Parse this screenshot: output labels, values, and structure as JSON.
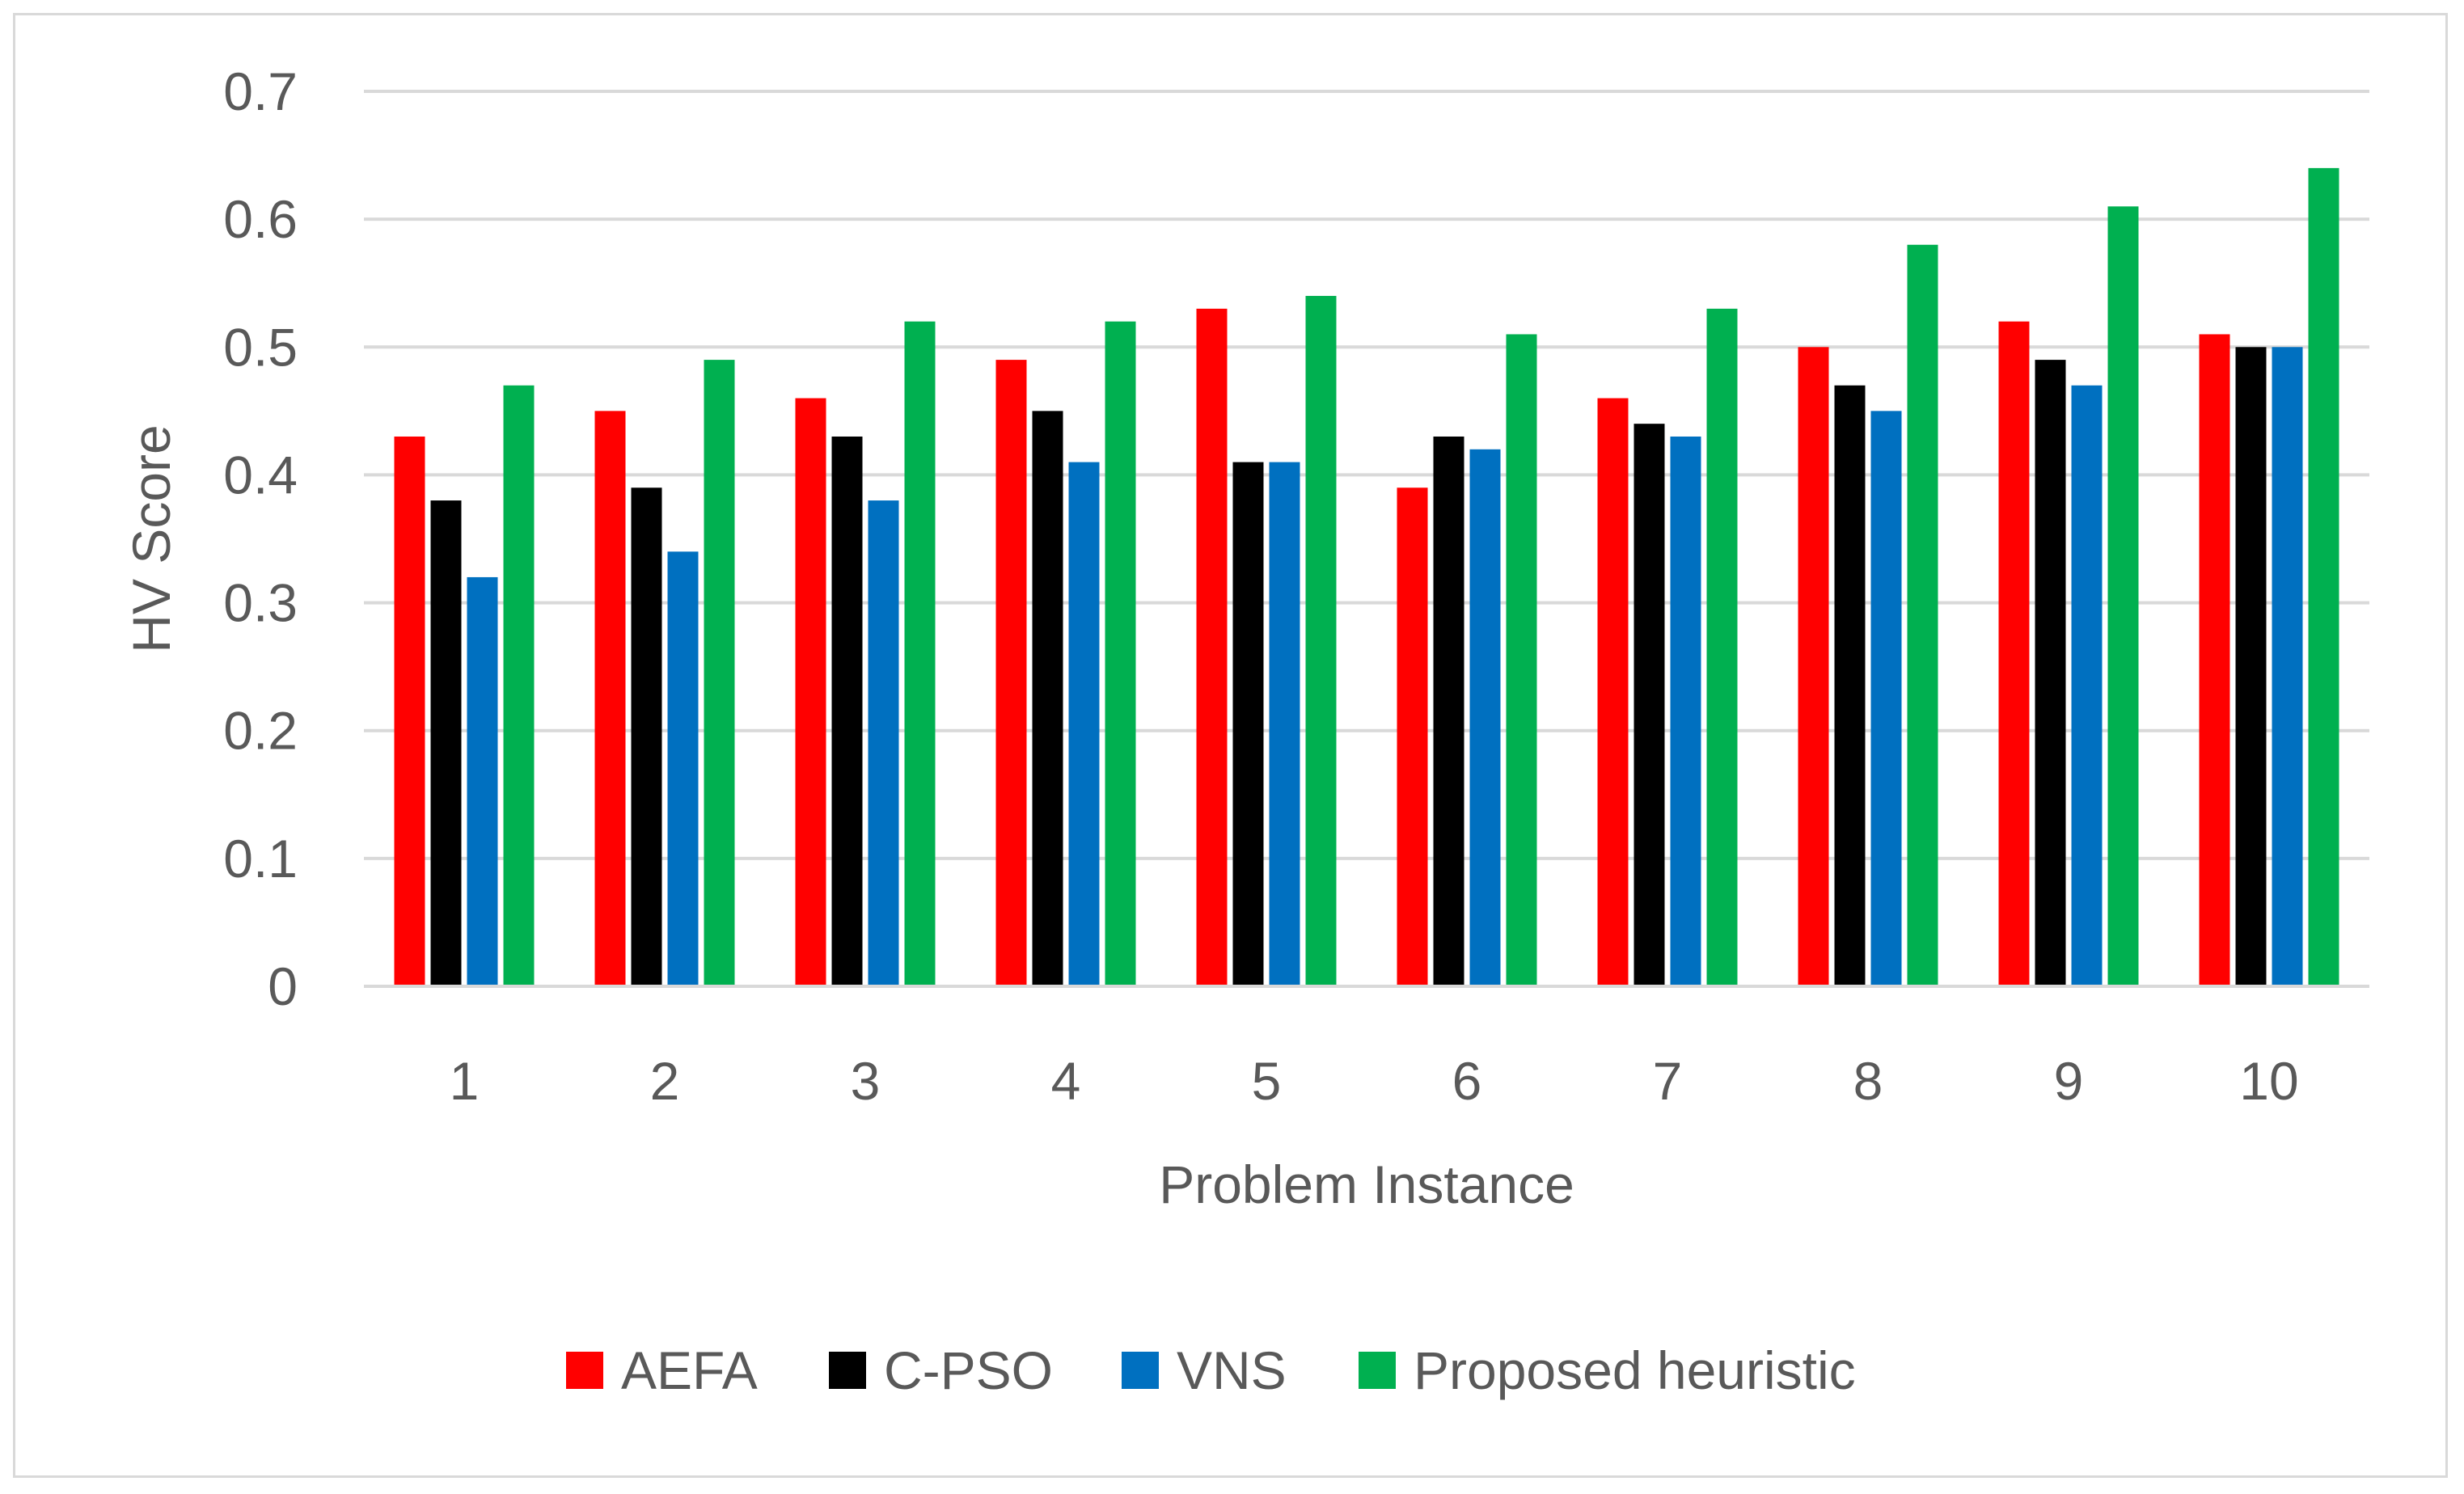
{
  "chart_data": {
    "type": "bar",
    "title": "",
    "xlabel": "Problem Instance",
    "ylabel": "HV Score",
    "ylim": [
      0,
      0.7
    ],
    "yticks": [
      "0",
      "0.1",
      "0.2",
      "0.3",
      "0.4",
      "0.5",
      "0.6",
      "0.7"
    ],
    "grid": true,
    "legend_position": "bottom",
    "categories": [
      "1",
      "2",
      "3",
      "4",
      "5",
      "6",
      "7",
      "8",
      "9",
      "10"
    ],
    "series": [
      {
        "name": "AEFA",
        "color": "#ff0000",
        "values": [
          0.43,
          0.45,
          0.46,
          0.49,
          0.53,
          0.39,
          0.46,
          0.5,
          0.52,
          0.51
        ]
      },
      {
        "name": "C-PSO",
        "color": "#000000",
        "values": [
          0.38,
          0.39,
          0.43,
          0.45,
          0.41,
          0.43,
          0.44,
          0.47,
          0.49,
          0.5
        ]
      },
      {
        "name": "VNS",
        "color": "#0070c0",
        "values": [
          0.32,
          0.34,
          0.38,
          0.41,
          0.41,
          0.42,
          0.43,
          0.45,
          0.47,
          0.5
        ]
      },
      {
        "name": "Proposed heuristic",
        "color": "#00b050",
        "values": [
          0.47,
          0.49,
          0.52,
          0.52,
          0.54,
          0.51,
          0.53,
          0.58,
          0.61,
          0.64
        ]
      }
    ]
  }
}
